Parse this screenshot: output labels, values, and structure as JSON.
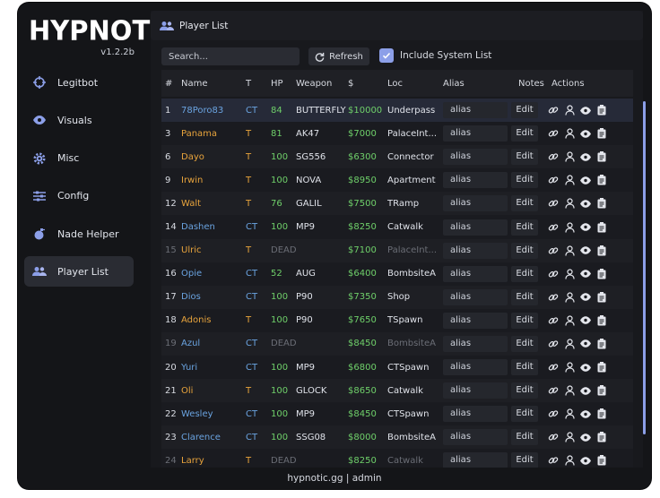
{
  "app": {
    "logo": "HYPNOTIC",
    "version": "v1.2.2b"
  },
  "sidebar": {
    "items": [
      {
        "label": "Legitbot",
        "icon": "crosshair-icon",
        "active": false
      },
      {
        "label": "Visuals",
        "icon": "eye-icon",
        "active": false
      },
      {
        "label": "Misc",
        "icon": "gear-icon",
        "active": false
      },
      {
        "label": "Config",
        "icon": "sliders-icon",
        "active": false
      },
      {
        "label": "Nade Helper",
        "icon": "grenade-icon",
        "active": false
      },
      {
        "label": "Player List",
        "icon": "users-icon",
        "active": true
      }
    ]
  },
  "header": {
    "title": "Player List",
    "icon": "users-icon"
  },
  "toolbar": {
    "search_placeholder": "Search...",
    "refresh_label": "Refresh",
    "include_system_label": "Include System List",
    "include_system_checked": true
  },
  "table": {
    "columns": [
      "#",
      "Name",
      "T",
      "HP",
      "Weapon",
      "$",
      "Loc",
      "Alias",
      "Notes",
      "Actions"
    ],
    "rows": [
      {
        "num": "1",
        "name": "78Poro83",
        "team": "CT",
        "hp": "84",
        "weapon": "BUTTERFLY",
        "money": "$10000",
        "loc": "Underpass",
        "alias": "alias",
        "edit": "Edit",
        "dead": false,
        "selected": true
      },
      {
        "num": "3",
        "name": "Panama",
        "team": "T",
        "hp": "81",
        "weapon": "AK47",
        "money": "$7000",
        "loc": "PalaceInt...",
        "alias": "alias",
        "edit": "Edit",
        "dead": false
      },
      {
        "num": "6",
        "name": "Dayo",
        "team": "T",
        "hp": "100",
        "weapon": "SG556",
        "money": "$6300",
        "loc": "Connector",
        "alias": "alias",
        "edit": "Edit",
        "dead": false
      },
      {
        "num": "9",
        "name": "Irwin",
        "team": "T",
        "hp": "100",
        "weapon": "NOVA",
        "money": "$8950",
        "loc": "Apartment",
        "alias": "alias",
        "edit": "Edit",
        "dead": false
      },
      {
        "num": "12",
        "name": "Walt",
        "team": "T",
        "hp": "76",
        "weapon": "GALIL",
        "money": "$7500",
        "loc": "TRamp",
        "alias": "alias",
        "edit": "Edit",
        "dead": false
      },
      {
        "num": "14",
        "name": "Dashen",
        "team": "CT",
        "hp": "100",
        "weapon": "MP9",
        "money": "$8250",
        "loc": "Catwalk",
        "alias": "alias",
        "edit": "Edit",
        "dead": false
      },
      {
        "num": "15",
        "name": "Ulric",
        "team": "T",
        "hp": "DEAD",
        "weapon": "",
        "money": "$7100",
        "loc": "PalaceInt...",
        "alias": "alias",
        "edit": "Edit",
        "dead": true
      },
      {
        "num": "16",
        "name": "Opie",
        "team": "CT",
        "hp": "52",
        "weapon": "AUG",
        "money": "$6400",
        "loc": "BombsiteA",
        "alias": "alias",
        "edit": "Edit",
        "dead": false
      },
      {
        "num": "17",
        "name": "Dios",
        "team": "CT",
        "hp": "100",
        "weapon": "P90",
        "money": "$7350",
        "loc": "Shop",
        "alias": "alias",
        "edit": "Edit",
        "dead": false
      },
      {
        "num": "18",
        "name": "Adonis",
        "team": "T",
        "hp": "100",
        "weapon": "P90",
        "money": "$7650",
        "loc": "TSpawn",
        "alias": "alias",
        "edit": "Edit",
        "dead": false
      },
      {
        "num": "19",
        "name": "Azul",
        "team": "CT",
        "hp": "DEAD",
        "weapon": "",
        "money": "$8450",
        "loc": "BombsiteA",
        "alias": "alias",
        "edit": "Edit",
        "dead": true
      },
      {
        "num": "20",
        "name": "Yuri",
        "team": "CT",
        "hp": "100",
        "weapon": "MP9",
        "money": "$6800",
        "loc": "CTSpawn",
        "alias": "alias",
        "edit": "Edit",
        "dead": false
      },
      {
        "num": "21",
        "name": "Oli",
        "team": "T",
        "hp": "100",
        "weapon": "GLOCK",
        "money": "$8650",
        "loc": "Catwalk",
        "alias": "alias",
        "edit": "Edit",
        "dead": false
      },
      {
        "num": "22",
        "name": "Wesley",
        "team": "CT",
        "hp": "100",
        "weapon": "MP9",
        "money": "$8450",
        "loc": "CTSpawn",
        "alias": "alias",
        "edit": "Edit",
        "dead": false
      },
      {
        "num": "23",
        "name": "Clarence",
        "team": "CT",
        "hp": "100",
        "weapon": "SSG08",
        "money": "$8000",
        "loc": "BombsiteA",
        "alias": "alias",
        "edit": "Edit",
        "dead": false
      },
      {
        "num": "24",
        "name": "Larry",
        "team": "T",
        "hp": "DEAD",
        "weapon": "",
        "money": "$8250",
        "loc": "Catwalk",
        "alias": "alias",
        "edit": "Edit",
        "dead": true
      }
    ]
  },
  "actions": [
    "link-icon",
    "user-icon",
    "eye-icon",
    "clipboard-icon"
  ],
  "footer": {
    "text": "hypnotic.gg | admin"
  },
  "colors": {
    "ct": "#6aa3e0",
    "t": "#e7a33c",
    "hp": "#6fd06a",
    "money": "#6fd06a",
    "accent": "#8c9fe8"
  }
}
